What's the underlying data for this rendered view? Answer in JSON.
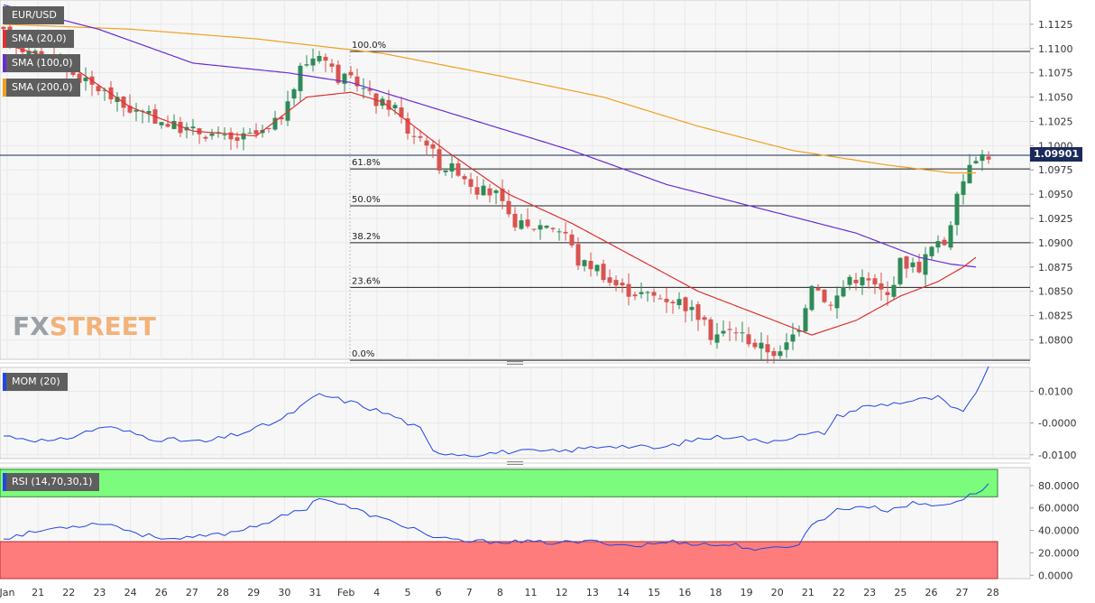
{
  "legend": {
    "symbol": "EUR/USD",
    "sma20": "SMA (20,0)",
    "sma100": "SMA (100,0)",
    "sma200": "SMA (200,0)",
    "mom": "MOM (20)",
    "rsi": "RSI (14,70,30,1)"
  },
  "watermark": {
    "part1": "FX",
    "part2": "STREET"
  },
  "colors": {
    "bull": "#2e8b57",
    "bear": "#d9534f",
    "sma20": "#e03030",
    "sma100": "#6a2bd6",
    "sma200": "#f0a020",
    "mom": "#2246e6",
    "rsi": "#2246e6",
    "rsi_over": "#7cfc7c",
    "rsi_under": "#ff7c7c",
    "price_line": "#1a2a5a",
    "tag_bg": "#5e5e5e"
  },
  "current_price": "1.09901",
  "chart_data": [
    {
      "type": "candlestick",
      "title": "EUR/USD",
      "ylim": [
        1.078,
        1.115
      ],
      "y_ticks": [
        "1.1125",
        "1.1100",
        "1.1075",
        "1.1050",
        "1.1025",
        "1.1000",
        "1.0975",
        "1.0950",
        "1.0925",
        "1.0900",
        "1.0875",
        "1.0850",
        "1.0825",
        "1.0800"
      ],
      "x_ticks": [
        "Jan",
        "21",
        "22",
        "23",
        "24",
        "26",
        "27",
        "28",
        "29",
        "30",
        "31",
        "Feb",
        "4",
        "5",
        "6",
        "7",
        "8",
        "11",
        "12",
        "13",
        "14",
        "15",
        "16",
        "18",
        "19",
        "20",
        "21",
        "22",
        "23",
        "25",
        "26",
        "27",
        "28"
      ],
      "fibonacci": [
        {
          "label": "100.0%",
          "value": 1.1097
        },
        {
          "label": "61.8%",
          "value": 1.0976
        },
        {
          "label": "50.0%",
          "value": 1.0938
        },
        {
          "label": "38.2%",
          "value": 1.09
        },
        {
          "label": "23.6%",
          "value": 1.0854
        },
        {
          "label": "0.0%",
          "value": 1.0779
        }
      ],
      "price_anchors": [
        [
          0,
          1.112
        ],
        [
          5,
          1.1095
        ],
        [
          9,
          1.1088
        ],
        [
          14,
          1.1065
        ],
        [
          17,
          1.1055
        ],
        [
          20,
          1.104
        ],
        [
          24,
          1.103
        ],
        [
          28,
          1.102
        ],
        [
          31,
          1.1015
        ],
        [
          34,
          1.1012
        ],
        [
          37,
          1.1005
        ],
        [
          40,
          1.101
        ],
        [
          43,
          1.1015
        ],
        [
          46,
          1.104
        ],
        [
          48,
          1.108
        ],
        [
          51,
          1.1097
        ],
        [
          54,
          1.107
        ],
        [
          57,
          1.1065
        ],
        [
          60,
          1.1045
        ],
        [
          63,
          1.104
        ],
        [
          65,
          1.1015
        ],
        [
          68,
          1.1005
        ],
        [
          70,
          1.098
        ],
        [
          73,
          1.0975
        ],
        [
          76,
          1.0955
        ],
        [
          79,
          1.095
        ],
        [
          81,
          1.0925
        ],
        [
          84,
          1.0915
        ],
        [
          87,
          1.092
        ],
        [
          90,
          1.091
        ],
        [
          92,
          1.088
        ],
        [
          95,
          1.0875
        ],
        [
          97,
          1.086
        ],
        [
          100,
          1.085
        ],
        [
          104,
          1.0845
        ],
        [
          108,
          1.084
        ],
        [
          111,
          1.0825
        ],
        [
          113,
          1.0805
        ],
        [
          117,
          1.081
        ],
        [
          120,
          1.0795
        ],
        [
          124,
          1.0785
        ],
        [
          127,
          1.0815
        ],
        [
          129,
          1.086
        ],
        [
          132,
          1.0835
        ],
        [
          135,
          1.0865
        ],
        [
          138,
          1.086
        ],
        [
          141,
          1.0845
        ],
        [
          143,
          1.088
        ],
        [
          146,
          1.0875
        ],
        [
          148,
          1.0895
        ],
        [
          150,
          1.09
        ],
        [
          152,
          1.0945
        ],
        [
          154,
          1.0985
        ],
        [
          155,
          1.099
        ]
      ],
      "sma20_anchors": [
        [
          0,
          1.1105
        ],
        [
          10,
          1.1085
        ],
        [
          20,
          1.104
        ],
        [
          30,
          1.1015
        ],
        [
          40,
          1.101
        ],
        [
          48,
          1.105
        ],
        [
          55,
          1.1055
        ],
        [
          60,
          1.1045
        ],
        [
          70,
          1.0995
        ],
        [
          80,
          1.095
        ],
        [
          90,
          1.092
        ],
        [
          100,
          1.0885
        ],
        [
          110,
          1.085
        ],
        [
          120,
          1.0825
        ],
        [
          128,
          1.0805
        ],
        [
          135,
          1.082
        ],
        [
          142,
          1.0845
        ],
        [
          148,
          1.086
        ],
        [
          152,
          1.0875
        ],
        [
          154,
          1.0885
        ]
      ],
      "sma100_anchors": [
        [
          0,
          1.1145
        ],
        [
          15,
          1.112
        ],
        [
          30,
          1.1085
        ],
        [
          45,
          1.1075
        ],
        [
          55,
          1.1065
        ],
        [
          65,
          1.1045
        ],
        [
          75,
          1.1025
        ],
        [
          90,
          1.0995
        ],
        [
          105,
          1.096
        ],
        [
          120,
          1.0935
        ],
        [
          135,
          1.091
        ],
        [
          145,
          1.0885
        ],
        [
          150,
          1.0878
        ],
        [
          154,
          1.0875
        ]
      ],
      "sma200_anchors": [
        [
          0,
          1.1125
        ],
        [
          20,
          1.112
        ],
        [
          40,
          1.111
        ],
        [
          60,
          1.1095
        ],
        [
          80,
          1.107
        ],
        [
          95,
          1.105
        ],
        [
          110,
          1.102
        ],
        [
          125,
          1.0995
        ],
        [
          140,
          1.098
        ],
        [
          150,
          1.0972
        ],
        [
          154,
          1.0972
        ]
      ]
    },
    {
      "type": "line",
      "title": "MOM (20)",
      "ylim": [
        -0.0112,
        0.0175
      ],
      "y_ticks": [
        "0.0100",
        "-0.0000",
        "-0.0100"
      ],
      "anchors": [
        [
          0,
          -0.004
        ],
        [
          8,
          -0.006
        ],
        [
          16,
          -0.001
        ],
        [
          24,
          -0.005
        ],
        [
          32,
          -0.006
        ],
        [
          38,
          -0.003
        ],
        [
          44,
          0.001
        ],
        [
          50,
          0.009
        ],
        [
          56,
          0.006
        ],
        [
          62,
          0.002
        ],
        [
          66,
          -0.002
        ],
        [
          68,
          -0.009
        ],
        [
          74,
          -0.01
        ],
        [
          80,
          -0.009
        ],
        [
          88,
          -0.009
        ],
        [
          96,
          -0.007
        ],
        [
          104,
          -0.008
        ],
        [
          110,
          -0.005
        ],
        [
          116,
          -0.004
        ],
        [
          120,
          -0.006
        ],
        [
          126,
          -0.004
        ],
        [
          130,
          -0.003
        ],
        [
          132,
          0.002
        ],
        [
          136,
          0.005
        ],
        [
          140,
          0.006
        ],
        [
          144,
          0.007
        ],
        [
          148,
          0.008
        ],
        [
          150,
          0.005
        ],
        [
          152,
          0.003
        ],
        [
          154,
          0.01
        ],
        [
          156,
          0.017
        ]
      ]
    },
    {
      "type": "line",
      "title": "RSI (14,70,30,1)",
      "ylim": [
        -3,
        96
      ],
      "y_ticks": [
        "80.0000",
        "60.0000",
        "40.0000",
        "20.0000",
        "0.0000"
      ],
      "zones": {
        "overbought": 70,
        "oversold": 30
      },
      "anchors": [
        [
          0,
          33
        ],
        [
          8,
          42
        ],
        [
          16,
          47
        ],
        [
          22,
          36
        ],
        [
          28,
          32
        ],
        [
          36,
          38
        ],
        [
          42,
          48
        ],
        [
          48,
          60
        ],
        [
          50,
          70
        ],
        [
          54,
          62
        ],
        [
          60,
          50
        ],
        [
          66,
          40
        ],
        [
          68,
          33
        ],
        [
          74,
          30
        ],
        [
          80,
          30
        ],
        [
          88,
          29
        ],
        [
          94,
          30
        ],
        [
          100,
          26
        ],
        [
          106,
          30
        ],
        [
          112,
          27
        ],
        [
          116,
          27
        ],
        [
          120,
          22
        ],
        [
          124,
          26
        ],
        [
          126,
          28
        ],
        [
          128,
          45
        ],
        [
          132,
          58
        ],
        [
          136,
          62
        ],
        [
          140,
          58
        ],
        [
          144,
          64
        ],
        [
          148,
          62
        ],
        [
          152,
          68
        ],
        [
          154,
          74
        ],
        [
          156,
          80
        ]
      ]
    }
  ]
}
